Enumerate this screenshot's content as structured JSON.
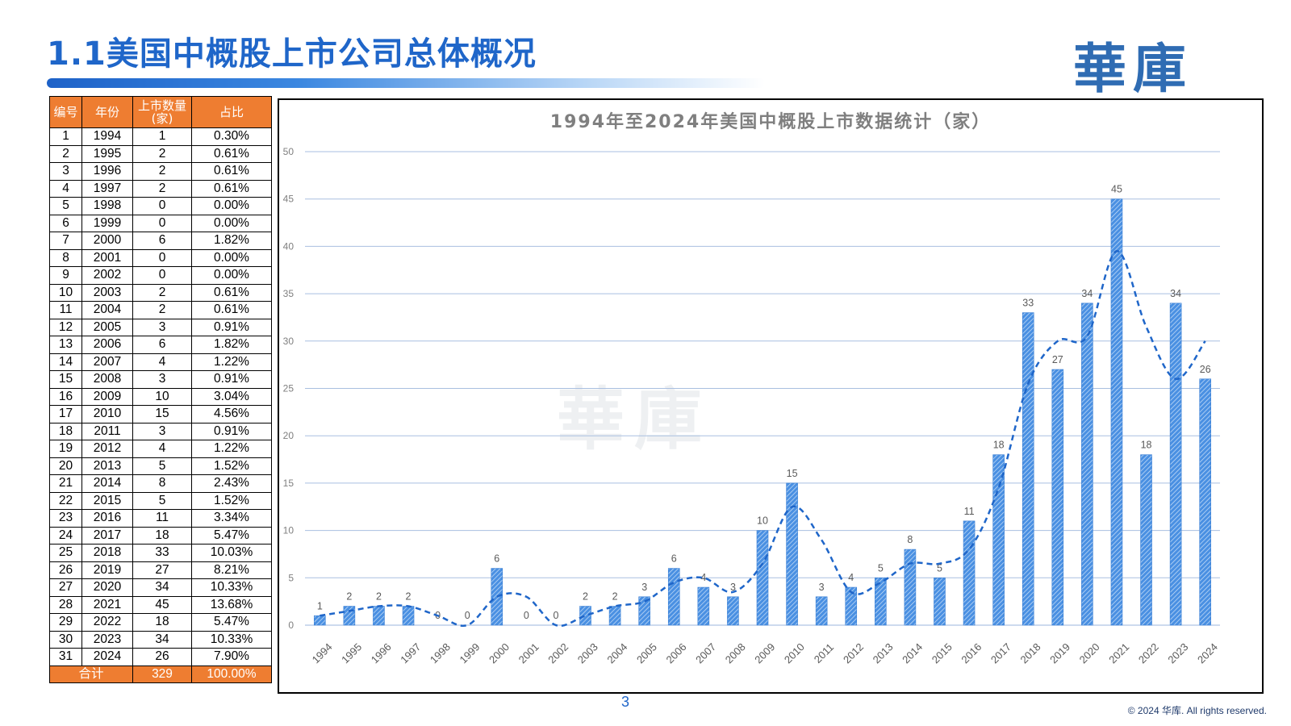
{
  "page": {
    "title": "1.1美国中概股上市公司总体概况",
    "logo_text": "華庫",
    "page_number": "3",
    "copyright": "© 2024 华库. All rights reserved."
  },
  "table": {
    "headers": [
      "编号",
      "年份",
      "上市数量\n(家)",
      "占比"
    ],
    "rows": [
      [
        "1",
        "1994",
        "1",
        "0.30%"
      ],
      [
        "2",
        "1995",
        "2",
        "0.61%"
      ],
      [
        "3",
        "1996",
        "2",
        "0.61%"
      ],
      [
        "4",
        "1997",
        "2",
        "0.61%"
      ],
      [
        "5",
        "1998",
        "0",
        "0.00%"
      ],
      [
        "6",
        "1999",
        "0",
        "0.00%"
      ],
      [
        "7",
        "2000",
        "6",
        "1.82%"
      ],
      [
        "8",
        "2001",
        "0",
        "0.00%"
      ],
      [
        "9",
        "2002",
        "0",
        "0.00%"
      ],
      [
        "10",
        "2003",
        "2",
        "0.61%"
      ],
      [
        "11",
        "2004",
        "2",
        "0.61%"
      ],
      [
        "12",
        "2005",
        "3",
        "0.91%"
      ],
      [
        "13",
        "2006",
        "6",
        "1.82%"
      ],
      [
        "14",
        "2007",
        "4",
        "1.22%"
      ],
      [
        "15",
        "2008",
        "3",
        "0.91%"
      ],
      [
        "16",
        "2009",
        "10",
        "3.04%"
      ],
      [
        "17",
        "2010",
        "15",
        "4.56%"
      ],
      [
        "18",
        "2011",
        "3",
        "0.91%"
      ],
      [
        "19",
        "2012",
        "4",
        "1.22%"
      ],
      [
        "20",
        "2013",
        "5",
        "1.52%"
      ],
      [
        "21",
        "2014",
        "8",
        "2.43%"
      ],
      [
        "22",
        "2015",
        "5",
        "1.52%"
      ],
      [
        "23",
        "2016",
        "11",
        "3.34%"
      ],
      [
        "24",
        "2017",
        "18",
        "5.47%"
      ],
      [
        "25",
        "2018",
        "33",
        "10.03%"
      ],
      [
        "26",
        "2019",
        "27",
        "8.21%"
      ],
      [
        "27",
        "2020",
        "34",
        "10.33%"
      ],
      [
        "28",
        "2021",
        "45",
        "13.68%"
      ],
      [
        "29",
        "2022",
        "18",
        "5.47%"
      ],
      [
        "30",
        "2023",
        "34",
        "10.33%"
      ],
      [
        "31",
        "2024",
        "26",
        "7.90%"
      ]
    ],
    "total": {
      "label": "合计",
      "count": "329",
      "percent": "100.00%"
    }
  },
  "colors": {
    "accent": "#1f66c9",
    "header_fill": "#ee7d31",
    "bar": "#4a90e2",
    "gridline": "#a9bfe0"
  },
  "chart_data": {
    "type": "bar",
    "title": "1994年至2024年美国中概股上市数据统计（家）",
    "watermark": "華庫",
    "xlabel": "",
    "ylabel": "",
    "ylim": [
      0,
      50
    ],
    "yticks": [
      0,
      5,
      10,
      15,
      20,
      25,
      30,
      35,
      40,
      45,
      50
    ],
    "grid": true,
    "categories": [
      "1994",
      "1995",
      "1996",
      "1997",
      "1998",
      "1999",
      "2000",
      "2001",
      "2002",
      "2003",
      "2004",
      "2005",
      "2006",
      "2007",
      "2008",
      "2009",
      "2010",
      "2011",
      "2012",
      "2013",
      "2014",
      "2015",
      "2016",
      "2017",
      "2018",
      "2019",
      "2020",
      "2021",
      "2022",
      "2023",
      "2024"
    ],
    "values": [
      1,
      2,
      2,
      2,
      0,
      0,
      6,
      0,
      0,
      2,
      2,
      3,
      6,
      4,
      3,
      10,
      15,
      3,
      4,
      5,
      8,
      5,
      11,
      18,
      33,
      27,
      34,
      45,
      18,
      34,
      26
    ],
    "trendline": {
      "style": "dashed",
      "values": [
        1,
        1.5,
        2,
        2,
        1,
        0,
        3,
        3,
        0,
        1,
        2,
        2.5,
        4.5,
        5,
        3.5,
        6.5,
        12.5,
        9,
        3.5,
        4.5,
        6.5,
        6.5,
        8,
        14.5,
        25.5,
        30,
        30.5,
        39.5,
        31.5,
        26,
        30
      ]
    }
  }
}
